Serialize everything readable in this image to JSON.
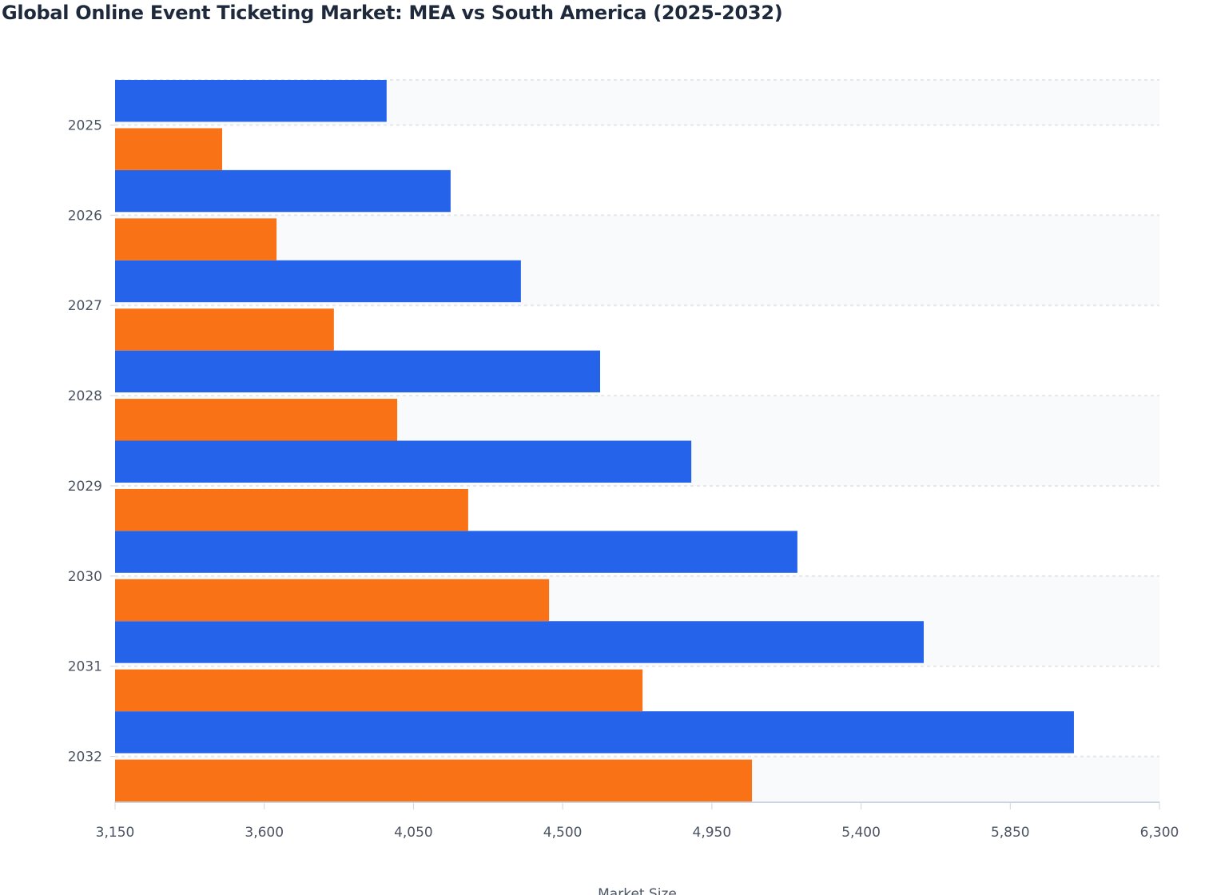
{
  "chart_data": {
    "type": "bar",
    "orientation": "horizontal",
    "title": "Global Online Event Ticketing Market: MEA vs South America (2025-2032)",
    "xlabel": "Market Size",
    "ylabel": "",
    "categories": [
      "2025",
      "2026",
      "2027",
      "2028",
      "2029",
      "2030",
      "2031",
      "2032"
    ],
    "series": [
      {
        "color": "#2563eb",
        "values": [
          3969,
          4162,
          4374,
          4613,
          4888,
          5208,
          5589,
          6042
        ]
      },
      {
        "color": "#f97316",
        "values": [
          3473,
          3637,
          3810,
          4001,
          4215,
          4459,
          4741,
          5071
        ]
      }
    ],
    "xlim": [
      3150,
      6300
    ],
    "xticks": [
      "3,150",
      "3,600",
      "4,050",
      "4,500",
      "4,950",
      "5,400",
      "5,850",
      "6,300"
    ],
    "xtick_values": [
      3150,
      3600,
      4050,
      4500,
      4950,
      5400,
      5850,
      6300
    ],
    "grid": true,
    "legend": "none"
  }
}
